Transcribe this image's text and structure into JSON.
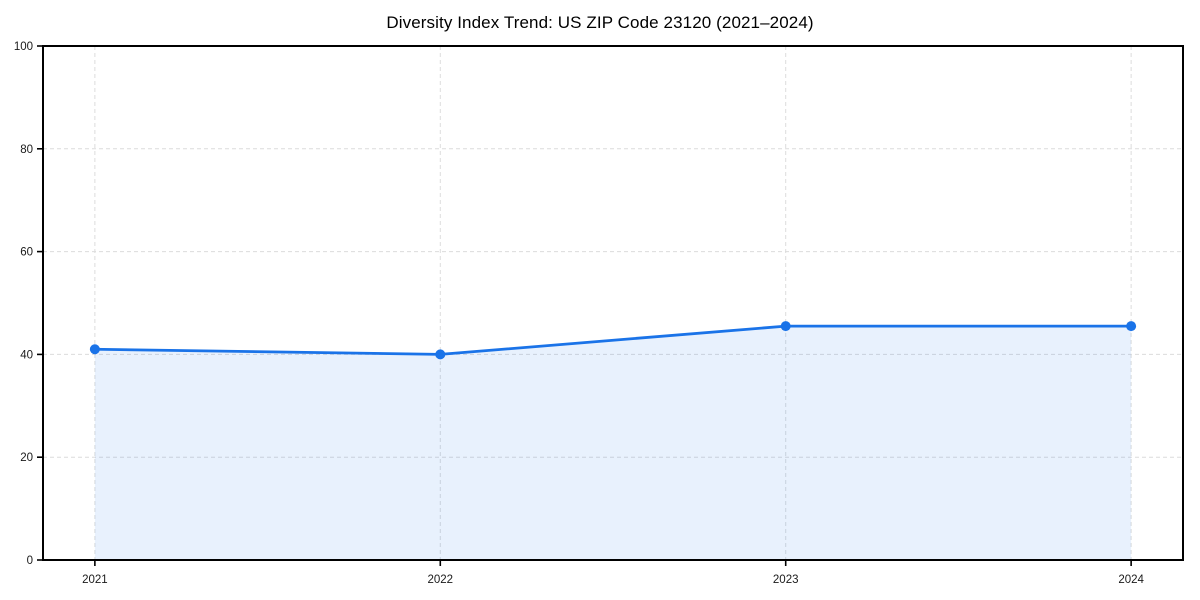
{
  "figure": {
    "title": "Diversity Index Trend: US ZIP Code 23120 (2021–2024)"
  },
  "chart_data": {
    "type": "area",
    "title": "Diversity Index Trend: US ZIP Code 23120 (2021–2024)",
    "categories": [
      "2021",
      "2022",
      "2023",
      "2024"
    ],
    "values": [
      41,
      40,
      45.5,
      45.5
    ],
    "xlabel": "",
    "ylabel": "",
    "ylim": [
      0,
      100
    ],
    "yticks": [
      0,
      20,
      40,
      60,
      80,
      100
    ],
    "grid": true,
    "grid_style": "dashed",
    "legend": false,
    "marker": "circle",
    "colors": {
      "line": "#1a73e8",
      "marker_fill": "#1a73e8",
      "area_fill": "rgba(26,115,232,0.10)",
      "gridline": "#dcdcdc",
      "spine": "#000000",
      "tick_text": "#1a1a1a",
      "background": "#ffffff"
    }
  }
}
